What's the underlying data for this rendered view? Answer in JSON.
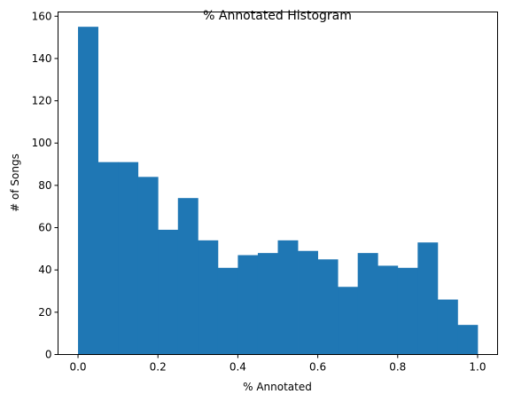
{
  "chart_data": {
    "type": "bar",
    "title": "% Annotated Histogram",
    "xlabel": "% Annotated",
    "ylabel": "# of Songs",
    "xlim": [
      -0.05,
      1.05
    ],
    "ylim": [
      0,
      162
    ],
    "bin_width": 0.05,
    "bins": [
      {
        "x0": 0.0,
        "count": 155
      },
      {
        "x0": 0.05,
        "count": 91
      },
      {
        "x0": 0.1,
        "count": 91
      },
      {
        "x0": 0.15,
        "count": 84
      },
      {
        "x0": 0.2,
        "count": 59
      },
      {
        "x0": 0.25,
        "count": 74
      },
      {
        "x0": 0.3,
        "count": 54
      },
      {
        "x0": 0.35,
        "count": 41
      },
      {
        "x0": 0.4,
        "count": 47
      },
      {
        "x0": 0.45,
        "count": 48
      },
      {
        "x0": 0.5,
        "count": 54
      },
      {
        "x0": 0.55,
        "count": 49
      },
      {
        "x0": 0.6,
        "count": 45
      },
      {
        "x0": 0.65,
        "count": 32
      },
      {
        "x0": 0.7,
        "count": 48
      },
      {
        "x0": 0.75,
        "count": 42
      },
      {
        "x0": 0.8,
        "count": 41
      },
      {
        "x0": 0.85,
        "count": 53
      },
      {
        "x0": 0.9,
        "count": 26
      },
      {
        "x0": 0.95,
        "count": 14
      }
    ],
    "x_ticks": [
      {
        "value": 0.0,
        "label": "0.0"
      },
      {
        "value": 0.2,
        "label": "0.2"
      },
      {
        "value": 0.4,
        "label": "0.4"
      },
      {
        "value": 0.6,
        "label": "0.6"
      },
      {
        "value": 0.8,
        "label": "0.8"
      },
      {
        "value": 1.0,
        "label": "1.0"
      }
    ],
    "y_ticks": [
      {
        "value": 0,
        "label": "0"
      },
      {
        "value": 20,
        "label": "20"
      },
      {
        "value": 40,
        "label": "40"
      },
      {
        "value": 60,
        "label": "60"
      },
      {
        "value": 80,
        "label": "80"
      },
      {
        "value": 100,
        "label": "100"
      },
      {
        "value": 120,
        "label": "120"
      },
      {
        "value": 140,
        "label": "140"
      },
      {
        "value": 160,
        "label": "160"
      }
    ],
    "bar_color": "#1f77b4",
    "grid": false,
    "legend": "none"
  }
}
